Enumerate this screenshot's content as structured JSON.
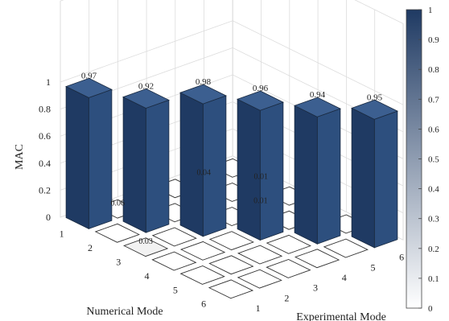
{
  "chart_data": {
    "type": "bar3d",
    "zlabel": "MAC",
    "xlabel": "Numerical Mode",
    "ylabel": "Experimental Mode",
    "numerical_modes": [
      "1",
      "2",
      "3",
      "4",
      "5",
      "6"
    ],
    "experimental_modes": [
      "1",
      "2",
      "3",
      "4",
      "5",
      "6"
    ],
    "z_ticks": [
      "0",
      "0.2",
      "0.4",
      "0.6",
      "0.8",
      "1"
    ],
    "zlim": [
      0,
      1
    ],
    "diagonal_values": [
      0.97,
      0.92,
      0.98,
      0.96,
      0.94,
      0.95
    ],
    "diagonal_labels": [
      "0.97",
      "0.92",
      "0.98",
      "0.96",
      "0.94",
      "0.95"
    ],
    "off_diagonal_labels": [
      {
        "numerical": 1,
        "experimental": 2,
        "text": "0.06"
      },
      {
        "numerical": 3,
        "experimental": 1,
        "text": "0.03"
      },
      {
        "numerical": 3,
        "experimental": 5,
        "text": "0.01"
      },
      {
        "numerical": 1,
        "experimental": 5,
        "text": "0.04"
      },
      {
        "numerical": 2,
        "experimental": 6,
        "text": "0.01"
      }
    ],
    "colorbar": {
      "min": 0,
      "max": 1,
      "ticks": [
        "0",
        "0.1",
        "0.2",
        "0.3",
        "0.4",
        "0.5",
        "0.6",
        "0.7",
        "0.8",
        "0.9",
        "1"
      ],
      "color_low": "#ffffff",
      "color_high": "#1f3a63"
    },
    "bar_colors": {
      "top": "#3c5f90",
      "left": "#2d4f7e",
      "right": "#1f3a63"
    },
    "grid": true
  }
}
